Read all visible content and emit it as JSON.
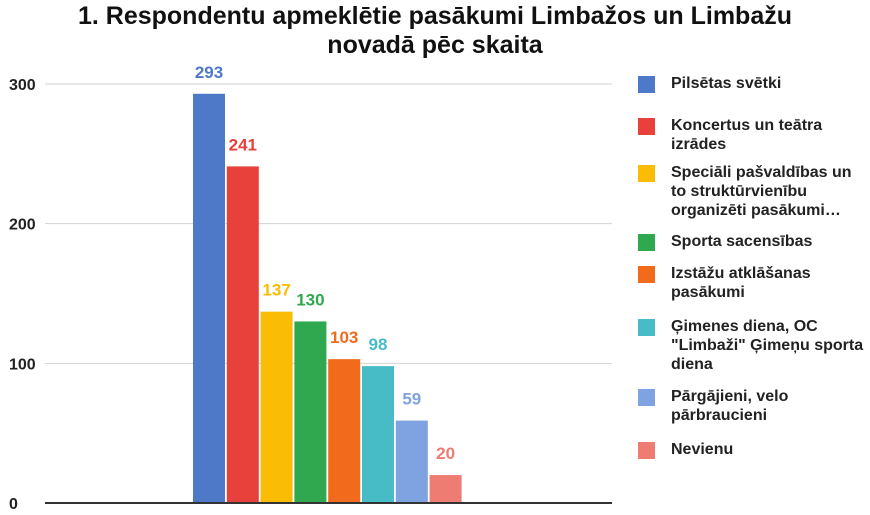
{
  "chart_data": {
    "type": "bar",
    "title_lines": [
      "1. Respondentu apmeklētie pasākumi Limbažos un Limbažu",
      "novadā pēc skaita"
    ],
    "ylim": [
      0,
      300
    ],
    "yticks": [
      0,
      100,
      200,
      300
    ],
    "grid": true,
    "legend_position": "right",
    "series": [
      {
        "name": "Pilsētas svētki",
        "value": 293,
        "color": "#4E79C8"
      },
      {
        "name": "Koncertus un teātra izrādes",
        "value": 241,
        "color": "#E8413C"
      },
      {
        "name": "Speciāli pašvaldības un to struktūrvienību organizēti pasākumi…",
        "value": 137,
        "color": "#FBBC05"
      },
      {
        "name": "Sporta sacensības",
        "value": 130,
        "color": "#2FA84F"
      },
      {
        "name": "Izstāžu atklāšanas pasākumi",
        "value": 103,
        "color": "#F26B1D"
      },
      {
        "name": "Ģimenes diena, OC \"Limbaži\" Ģimeņu sporta diena",
        "value": 98,
        "color": "#47BCC7"
      },
      {
        "name": "Pārgājieni, velo pārbraucieni",
        "value": 59,
        "color": "#7FA2E0"
      },
      {
        "name": "Nevienu",
        "value": 20,
        "color": "#EE7C73"
      }
    ]
  }
}
